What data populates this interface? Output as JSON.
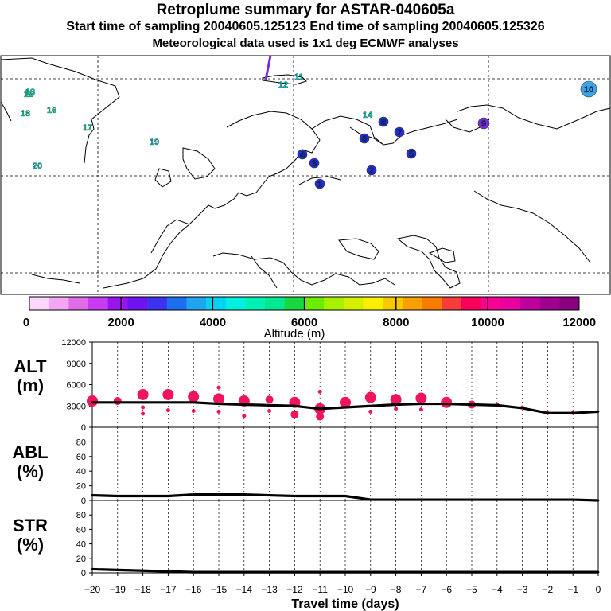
{
  "header": {
    "title": "Retroplume summary for ASTAR-040605a",
    "sampling": "Start time of sampling 20040605.125123     End time of sampling 20040605.125326",
    "met": "Meteorological data used is 1x1 deg ECMWF analyses"
  },
  "map": {
    "markers": [
      {
        "label": "10",
        "color": "#3aa6e8"
      },
      {
        "label": "11",
        "color": "#00cfcf"
      },
      {
        "label": "12",
        "color": "#00cfcf"
      },
      {
        "label": "13",
        "color": "#00d8b0"
      },
      {
        "label": "14",
        "color": "#00d8b0"
      },
      {
        "label": "15",
        "color": "#00d8a0"
      },
      {
        "label": "16",
        "color": "#00d8a0"
      },
      {
        "label": "17",
        "color": "#00c8a8"
      },
      {
        "label": "18",
        "color": "#00c8b0"
      },
      {
        "label": "19",
        "color": "#00c0c0"
      },
      {
        "label": "20",
        "color": "#00c0c0"
      },
      {
        "label": "1",
        "color": "#2a2ad8"
      },
      {
        "label": "2",
        "color": "#2a2ad8"
      },
      {
        "label": "3",
        "color": "#2a2ad8"
      },
      {
        "label": "4",
        "color": "#2a2ad8"
      },
      {
        "label": "5",
        "color": "#2a2ad8"
      },
      {
        "label": "6",
        "color": "#2a2ad8"
      },
      {
        "label": "7",
        "color": "#2a2ad8"
      },
      {
        "label": "8",
        "color": "#2a2ad8"
      },
      {
        "label": "9",
        "color": "#7a2ad8"
      }
    ]
  },
  "colorbar": {
    "label": "Altitude (m)",
    "ticks": [
      "0",
      "2000",
      "4000",
      "6000",
      "8000",
      "10000",
      "12000"
    ],
    "colors": [
      "#fbd7fb",
      "#f4a6f4",
      "#e06ce8",
      "#c83cf0",
      "#9a14ee",
      "#6e14f0",
      "#3c32f0",
      "#1e6ef0",
      "#1ea4f0",
      "#00d4f0",
      "#00f0e0",
      "#00f0b4",
      "#00e890",
      "#18d840",
      "#6cec00",
      "#a8f000",
      "#d4f000",
      "#f8f000",
      "#f8c800",
      "#f8a000",
      "#f87c00",
      "#f83c3c",
      "#f8005c",
      "#f80090",
      "#e800a0",
      "#c0009c",
      "#a00090",
      "#880080"
    ]
  },
  "chart_data": [
    {
      "type": "line",
      "title": "ALT (m)",
      "ylabel": "ALT (m)",
      "xlabel": "Travel time (days)",
      "x_ticks": [
        "-20",
        "-19",
        "-18",
        "-17",
        "-16",
        "-15",
        "-14",
        "-13",
        "-12",
        "-11",
        "-10",
        "-9",
        "-8",
        "-7",
        "-6",
        "-5",
        "-4",
        "-3",
        "-2",
        "-1",
        "0"
      ],
      "y_ticks": [
        "0",
        "3000",
        "6000",
        "9000",
        "12000"
      ],
      "ylim": [
        0,
        12000
      ],
      "x": [
        -20,
        -19,
        -18,
        -17,
        -16,
        -15,
        -14,
        -13,
        -12,
        -11,
        -10,
        -9,
        -8,
        -7,
        -6,
        -5,
        -4,
        -3,
        -2,
        -1,
        0
      ],
      "values": [
        3500,
        3500,
        3500,
        3500,
        3500,
        3300,
        3200,
        3100,
        3000,
        2600,
        2800,
        3000,
        3200,
        3300,
        3300,
        3200,
        3100,
        2700,
        2000,
        2000,
        2200
      ],
      "clusters": [
        {
          "x": -20,
          "y": 3700,
          "size": "large"
        },
        {
          "x": -19,
          "y": 3700,
          "size": "medium"
        },
        {
          "x": -18,
          "y": 4600,
          "size": "large"
        },
        {
          "x": -18,
          "y": 2800,
          "size": "small"
        },
        {
          "x": -18,
          "y": 1900,
          "size": "small"
        },
        {
          "x": -17,
          "y": 4600,
          "size": "large"
        },
        {
          "x": -17,
          "y": 2400,
          "size": "small"
        },
        {
          "x": -16,
          "y": 4300,
          "size": "large"
        },
        {
          "x": -16,
          "y": 2300,
          "size": "small"
        },
        {
          "x": -15,
          "y": 4000,
          "size": "large"
        },
        {
          "x": -15,
          "y": 5600,
          "size": "small"
        },
        {
          "x": -15,
          "y": 2200,
          "size": "small"
        },
        {
          "x": -14,
          "y": 3700,
          "size": "large"
        },
        {
          "x": -14,
          "y": 1600,
          "size": "small"
        },
        {
          "x": -13,
          "y": 3900,
          "size": "medium"
        },
        {
          "x": -13,
          "y": 2300,
          "size": "small"
        },
        {
          "x": -12,
          "y": 3500,
          "size": "large"
        },
        {
          "x": -12,
          "y": 1800,
          "size": "medium"
        },
        {
          "x": -11,
          "y": 2600,
          "size": "large"
        },
        {
          "x": -11,
          "y": 1500,
          "size": "medium"
        },
        {
          "x": -11,
          "y": 5000,
          "size": "small"
        },
        {
          "x": -10,
          "y": 3500,
          "size": "large"
        },
        {
          "x": -9,
          "y": 4200,
          "size": "large"
        },
        {
          "x": -9,
          "y": 2200,
          "size": "small"
        },
        {
          "x": -8,
          "y": 3900,
          "size": "large"
        },
        {
          "x": -8,
          "y": 2600,
          "size": "small"
        },
        {
          "x": -7,
          "y": 4100,
          "size": "large"
        },
        {
          "x": -7,
          "y": 2500,
          "size": "small"
        },
        {
          "x": -6,
          "y": 3500,
          "size": "large"
        },
        {
          "x": -5,
          "y": 3200,
          "size": "medium"
        },
        {
          "x": -4,
          "y": 3200,
          "size": "small"
        },
        {
          "x": -3,
          "y": 2800,
          "size": "small"
        },
        {
          "x": -2,
          "y": 2000,
          "size": "small"
        },
        {
          "x": -1,
          "y": 2000,
          "size": "small"
        }
      ]
    },
    {
      "type": "line",
      "title": "ABL (%)",
      "ylabel": "ABL (%)",
      "y_ticks": [
        "0",
        "20",
        "40",
        "60",
        "80"
      ],
      "ylim": [
        0,
        100
      ],
      "x": [
        -20,
        -19,
        -18,
        -17,
        -16,
        -15,
        -14,
        -13,
        -12,
        -11,
        -10,
        -9,
        -8,
        -7,
        -6,
        -5,
        -4,
        -3,
        -2,
        -1,
        0
      ],
      "values": [
        7,
        6,
        6,
        6,
        8,
        8,
        8,
        7,
        6,
        6,
        6,
        1,
        1,
        1,
        1,
        1,
        1,
        1,
        1,
        1,
        0
      ]
    },
    {
      "type": "line",
      "title": "STR (%)",
      "ylabel": "STR (%)",
      "y_ticks": [
        "0",
        "20",
        "40",
        "60",
        "80"
      ],
      "ylim": [
        0,
        100
      ],
      "x": [
        -20,
        -19,
        -18,
        -17,
        -16,
        -15,
        -14,
        -13,
        -12,
        -11,
        -10,
        -9,
        -8,
        -7,
        -6,
        -5,
        -4,
        -3,
        -2,
        -1,
        0
      ],
      "values": [
        5,
        4,
        3,
        2,
        1,
        1,
        1,
        1,
        1,
        1,
        1,
        1,
        1,
        1,
        1,
        1,
        1,
        1,
        1,
        1,
        1
      ]
    }
  ]
}
